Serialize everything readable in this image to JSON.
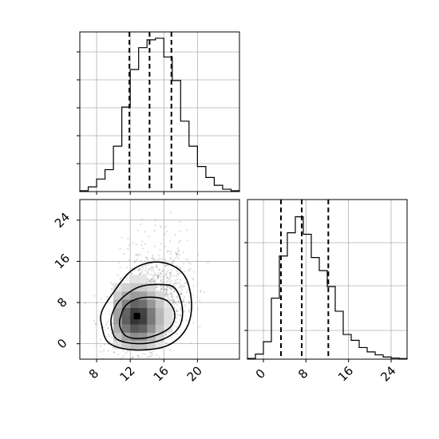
{
  "chart_data": [
    {
      "type": "histogram",
      "panel": "top-left",
      "bin_edges": [
        6,
        7,
        8,
        9,
        10,
        11,
        12,
        13,
        14,
        15,
        16,
        17,
        18,
        19,
        20,
        21,
        22,
        23,
        24,
        25
      ],
      "counts": [
        0.005,
        0.03,
        0.08,
        0.14,
        0.29,
        0.54,
        0.78,
        0.92,
        0.97,
        0.98,
        0.86,
        0.71,
        0.45,
        0.29,
        0.16,
        0.09,
        0.04,
        0.015,
        0.005
      ],
      "quantiles": [
        11.9,
        14.3,
        16.9
      ],
      "xlim": [
        6,
        25
      ],
      "ylim": [
        0,
        1
      ],
      "grid": true
    },
    {
      "type": "scatter-density",
      "panel": "bottom-left",
      "xlim": [
        6,
        25
      ],
      "ylim": [
        -3,
        28
      ],
      "x_ticks": [
        "8",
        "12",
        "16",
        "20"
      ],
      "y_ticks": [
        "0",
        "8",
        "16",
        "24"
      ],
      "grid": true,
      "point_mean": [
        14.3,
        7.2
      ],
      "point_std": [
        2.2,
        4.3
      ],
      "density_peak": [
        12.8,
        5.2
      ],
      "contours": [
        [
          [
            10.8,
            3.2
          ],
          [
            11.5,
            1.5
          ],
          [
            13.0,
            1.0
          ],
          [
            15.0,
            1.6
          ],
          [
            16.8,
            3.3
          ],
          [
            17.3,
            5.8
          ],
          [
            16.5,
            8.2
          ],
          [
            15.0,
            9.0
          ],
          [
            13.0,
            8.8
          ],
          [
            11.5,
            7.5
          ],
          [
            10.8,
            5.0
          ]
        ],
        [
          [
            9.8,
            3.0
          ],
          [
            10.5,
            0.8
          ],
          [
            13.0,
            0.0
          ],
          [
            15.8,
            0.8
          ],
          [
            17.8,
            3.2
          ],
          [
            18.2,
            7.0
          ],
          [
            17.3,
            10.8
          ],
          [
            15.5,
            11.5
          ],
          [
            13.0,
            11.0
          ],
          [
            10.8,
            8.5
          ],
          [
            9.8,
            5.5
          ]
        ],
        [
          [
            8.6,
            3.6
          ],
          [
            9.5,
            0.1
          ],
          [
            12.5,
            -1.2
          ],
          [
            16.2,
            -0.5
          ],
          [
            18.5,
            2.5
          ],
          [
            19.3,
            7.0
          ],
          [
            18.7,
            12.5
          ],
          [
            17.0,
            15.2
          ],
          [
            14.5,
            15.8
          ],
          [
            12.0,
            14.0
          ],
          [
            9.8,
            9.5
          ],
          [
            8.6,
            6.2
          ]
        ]
      ]
    },
    {
      "type": "histogram",
      "panel": "bottom-right",
      "bin_edges": [
        -3,
        -1.5,
        0,
        1.5,
        3,
        4.5,
        6,
        7.5,
        9,
        10.5,
        12,
        13.5,
        15,
        16.5,
        18,
        19.5,
        21,
        22.5,
        24,
        25.5,
        27
      ],
      "counts": [
        0.005,
        0.035,
        0.12,
        0.42,
        0.71,
        0.87,
        0.98,
        0.86,
        0.7,
        0.61,
        0.5,
        0.33,
        0.17,
        0.13,
        0.08,
        0.05,
        0.03,
        0.015,
        0.008,
        0.004
      ],
      "quantiles": [
        3.3,
        7.2,
        12.2
      ],
      "xlim": [
        -3,
        27
      ],
      "ylim": [
        0,
        1
      ],
      "x_ticks": [
        "0",
        "8",
        "16",
        "24"
      ],
      "grid": true
    }
  ]
}
